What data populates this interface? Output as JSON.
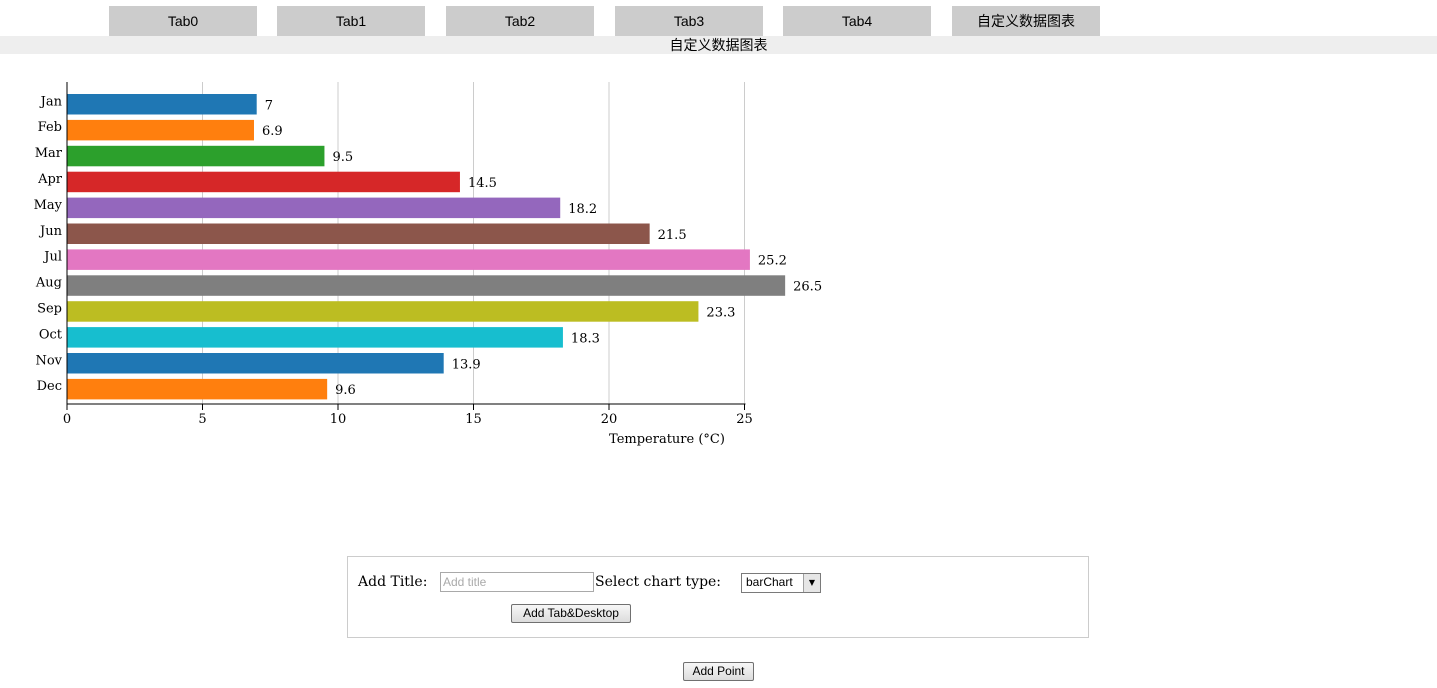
{
  "tabs": [
    {
      "label": "Tab0"
    },
    {
      "label": "Tab1"
    },
    {
      "label": "Tab2"
    },
    {
      "label": "Tab3"
    },
    {
      "label": "Tab4"
    },
    {
      "label": "自定义数据图表"
    }
  ],
  "page_title": "自定义数据图表",
  "chart_data": {
    "type": "bar",
    "orientation": "horizontal",
    "categories": [
      "Jan",
      "Feb",
      "Mar",
      "Apr",
      "May",
      "Jun",
      "Jul",
      "Aug",
      "Sep",
      "Oct",
      "Nov",
      "Dec"
    ],
    "values": [
      7,
      6.9,
      9.5,
      14.5,
      18.2,
      21.5,
      25.2,
      26.5,
      23.3,
      18.3,
      13.9,
      9.6
    ],
    "data_labels": [
      "7",
      "6.9",
      "9.5",
      "14.5",
      "18.2",
      "21.5",
      "25.2",
      "26.5",
      "23.3",
      "18.3",
      "13.9",
      "9.6"
    ],
    "colors": [
      "#1f77b4",
      "#ff7f0e",
      "#2ca02c",
      "#d62728",
      "#9467bd",
      "#8c564b",
      "#e377c2",
      "#7f7f7f",
      "#bcbd22",
      "#17becf",
      "#1f77b4",
      "#ff7f0e"
    ],
    "xlabel": "Temperature (°C)",
    "ylabel": "",
    "xlim": [
      0,
      28.4
    ],
    "xticks": [
      0,
      5,
      10,
      15,
      20,
      25
    ],
    "grid": "vertical"
  },
  "form": {
    "title_label": "Add Title:",
    "title_value": "",
    "title_placeholder": "Add title",
    "chart_type_label": "Select chart type:",
    "chart_type_value": "barChart",
    "add_tab_button": "Add Tab&Desktop"
  },
  "add_point_button": "Add Point"
}
